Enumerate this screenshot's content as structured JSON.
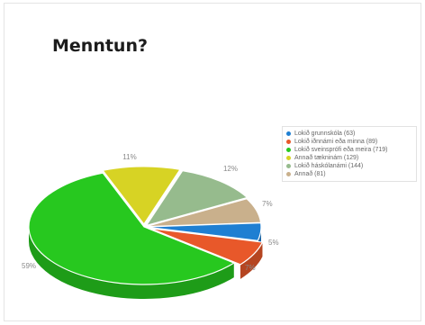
{
  "chart_data": {
    "type": "pie",
    "title": "Menntun?",
    "series": [
      {
        "name": "Lokið grunnskóla",
        "count": 63,
        "label": "Lokið grunnskóla (63)",
        "percent_label": "5%",
        "value": 5,
        "color": "#1f7fd2"
      },
      {
        "name": "Lokið iðnnámi eða minna",
        "count": 89,
        "label": "Lokið iðnnámi eða minna (89)",
        "percent_label": "7%",
        "value": 7,
        "color": "#e8582a"
      },
      {
        "name": "Lokið sveinsprófi eða meira",
        "count": 719,
        "label": "Lokið sveinsprófi eða meira (719)",
        "percent_label": "59%",
        "value": 59,
        "color": "#27c81f"
      },
      {
        "name": "Annað tækninám",
        "count": 129,
        "label": "Annað tækninám (129)",
        "percent_label": "11%",
        "value": 11,
        "color": "#d7d324"
      },
      {
        "name": "Lokið háskólanámi",
        "count": 144,
        "label": "Lokið háskólanámi (144)",
        "percent_label": "12%",
        "value": 12,
        "color": "#96bb8d"
      },
      {
        "name": "Annað",
        "count": 81,
        "label": "Annað (81)",
        "percent_label": "7%",
        "value": 7,
        "color": "#c9b08c"
      }
    ],
    "legend": "right"
  }
}
